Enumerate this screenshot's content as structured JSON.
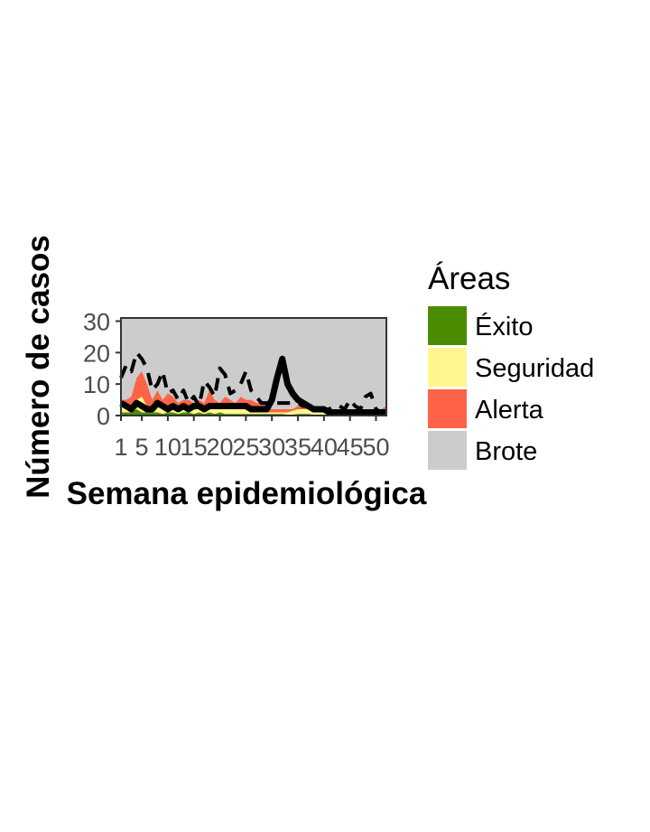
{
  "chart_data": {
    "type": "area",
    "title": "",
    "xlabel": "Semana epidemiológica",
    "ylabel": "Número de casos",
    "xlim": [
      1,
      52
    ],
    "ylim": [
      0,
      31
    ],
    "x_ticks": [
      1,
      5,
      10,
      15,
      20,
      25,
      30,
      35,
      40,
      45,
      50
    ],
    "y_ticks": [
      0,
      10,
      20,
      30
    ],
    "grid": false,
    "legend": {
      "title": "Áreas",
      "placement": "right",
      "items": [
        {
          "label": "Éxito",
          "color": "#4a8c00"
        },
        {
          "label": "Seguridad",
          "color": "#fff68f"
        },
        {
          "label": "Alerta",
          "color": "#ff6347"
        },
        {
          "label": "Brote",
          "color": "#cccccc"
        }
      ]
    },
    "x": [
      1,
      2,
      3,
      4,
      5,
      6,
      7,
      8,
      9,
      10,
      11,
      12,
      13,
      14,
      15,
      16,
      17,
      18,
      19,
      20,
      21,
      22,
      23,
      24,
      25,
      26,
      27,
      28,
      29,
      30,
      31,
      32,
      33,
      34,
      35,
      36,
      37,
      38,
      39,
      40,
      41,
      42,
      43,
      44,
      45,
      46,
      47,
      48,
      49,
      50,
      51,
      52
    ],
    "bands": {
      "exito": [
        1,
        1,
        1,
        2,
        1,
        1,
        1,
        1,
        0.5,
        1,
        1,
        0.5,
        1,
        1,
        0.5,
        1,
        0.5,
        1,
        0.5,
        1,
        0.5,
        0.5,
        0.5,
        0.5,
        0.5,
        0.5,
        0.5,
        0.5,
        0.5,
        0.5,
        0.5,
        0.5,
        0.3,
        0.3,
        0.5,
        0.5,
        0.5,
        0.3,
        0.3,
        0.3,
        0.3,
        0.3,
        0.3,
        0.3,
        0.3,
        0.3,
        0.3,
        0.3,
        0.3,
        0.3,
        1,
        2
      ],
      "seguridad": [
        3,
        3,
        3,
        5,
        6,
        3,
        3,
        3,
        2,
        3,
        3,
        2,
        2,
        2,
        2,
        3,
        2,
        4,
        2,
        2,
        2,
        2,
        2,
        2,
        2,
        2,
        2,
        1.5,
        1,
        1,
        1,
        1,
        1,
        1.5,
        2,
        2,
        2,
        1.5,
        1,
        1,
        1,
        1,
        1,
        1.5,
        1.5,
        1.5,
        1,
        1,
        1,
        1,
        1.5,
        2
      ],
      "alerta": [
        5,
        5,
        6,
        12,
        14,
        10,
        5,
        8,
        5,
        7,
        6,
        4,
        5,
        5,
        4,
        5,
        4,
        8,
        5,
        4,
        6,
        5,
        4,
        6,
        5,
        5,
        4,
        4,
        3,
        2,
        2,
        2,
        2,
        2,
        3,
        3,
        2.5,
        2,
        1.5,
        1.5,
        2,
        2,
        2,
        2,
        2,
        1.5,
        1.5,
        1.5,
        1.5,
        1.5,
        2,
        3
      ]
    },
    "series": [
      {
        "name": "",
        "style": "dashed",
        "values": [
          12,
          16,
          14,
          20,
          18,
          15,
          8,
          10,
          14,
          7,
          8,
          5,
          8,
          4,
          6,
          3,
          11,
          9,
          6,
          15,
          13,
          7,
          8,
          10,
          14,
          8,
          6,
          4,
          4,
          4,
          4,
          4,
          4,
          4,
          4,
          3,
          3,
          3,
          2,
          2,
          2,
          3,
          3,
          2,
          5,
          3,
          2,
          6,
          7,
          2,
          1,
          1
        ]
      },
      {
        "name": "",
        "style": "solid",
        "values": [
          4,
          3,
          2,
          4,
          3,
          2,
          2,
          4,
          3,
          2,
          3,
          2,
          3,
          2,
          3,
          3,
          2,
          3,
          3,
          3,
          3,
          3,
          3,
          3,
          3,
          2,
          2,
          2,
          2,
          5,
          12,
          18,
          10,
          7,
          5,
          4,
          3,
          2,
          2,
          2,
          1,
          1,
          1,
          1,
          1,
          1,
          1,
          1,
          1,
          1,
          1,
          1
        ]
      }
    ]
  }
}
